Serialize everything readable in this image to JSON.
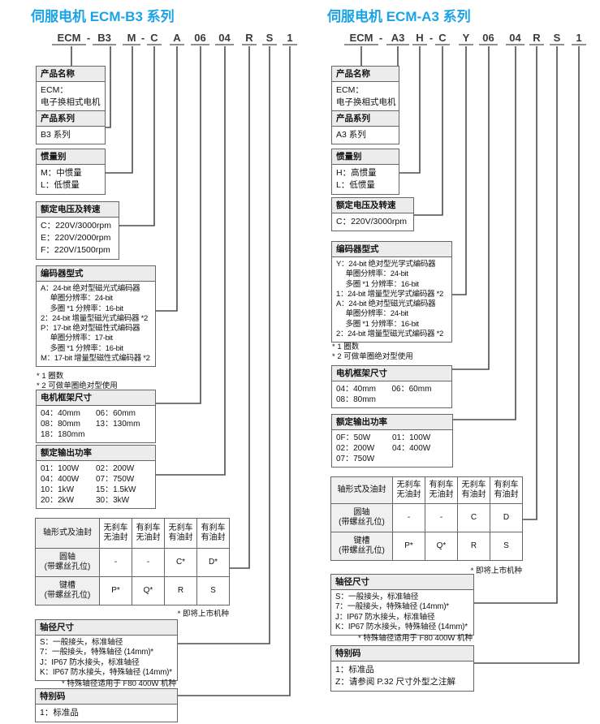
{
  "page": {
    "title_color": "#1BA3E8",
    "accent_line_color": "#4d4d4d"
  },
  "left": {
    "title": "伺服电机 ECM-B3 系列",
    "model": [
      "ECM",
      "-",
      "B3",
      "M",
      "-",
      "C",
      "A",
      "06",
      "04",
      "R",
      "S",
      "1"
    ],
    "boxes": {
      "product_name": {
        "header": "产品名称",
        "lines": [
          "ECM：",
          "电子换相式电机"
        ]
      },
      "series": {
        "header": "产品系列",
        "lines": [
          "B3 系列"
        ]
      },
      "inertia": {
        "header": "惯量别",
        "lines": [
          "M：中惯量",
          "L：低惯量"
        ]
      },
      "voltage": {
        "header": "额定电压及转速",
        "lines": [
          "C：220V/3000rpm",
          "E：220V/2000rpm",
          "F：220V/1500rpm"
        ]
      },
      "encoder": {
        "header": "编码器型式",
        "lines": [
          "A：24-bit 绝对型磁光式编码器",
          "　 单圈分辨率：24-bit",
          "　 多圈 *1 分辨率：16-bit",
          "2：24-bit 增量型磁光式编码器 *2",
          "P：17-bit 绝对型磁性式编码器",
          "　 单圈分辨率：17-bit",
          "　 多圈 *1 分辨率：16-bit",
          "M：17-bit 增量型磁性式编码器 *2"
        ],
        "notes": [
          "* 1 圈数",
          "* 2 可做单圈绝对型使用"
        ]
      },
      "frame": {
        "header": "电机框架尺寸",
        "pairs": [
          [
            "04：40mm",
            "06：60mm"
          ],
          [
            "08：80mm",
            "13：130mm"
          ],
          [
            "18：180mm",
            ""
          ]
        ]
      },
      "power": {
        "header": "额定输出功率",
        "pairs": [
          [
            "01：100W",
            "02：200W"
          ],
          [
            "04：400W",
            "07：750W"
          ],
          [
            "10：1kW",
            "15：1.5kW"
          ],
          [
            "20：2kW",
            "30：3kW"
          ]
        ]
      },
      "shaft_table": {
        "header": [
          "轴形式及油封",
          "无刹车|无油封",
          "有刹车|无油封",
          "无刹车|有油封",
          "有刹车|有油封"
        ],
        "rows": [
          [
            "圆轴|(带螺丝孔位)",
            "-",
            "-",
            "C*",
            "D*"
          ],
          [
            "键槽|(带螺丝孔位)",
            "P*",
            "Q*",
            "R",
            "S"
          ]
        ],
        "note": "* 即将上市机种"
      },
      "shaft_dia": {
        "header": "轴径尺寸",
        "lines": [
          "S：一般接头，标准轴径",
          "7：一般接头，特殊轴径 (14mm)*",
          "J：IP67 防水接头，标准轴径",
          "K：IP67 防水接头，特殊轴径 (14mm)*"
        ],
        "note": "* 特殊轴径适用于 F80 400W 机种"
      },
      "special": {
        "header": "特别码",
        "lines": [
          "1：标准品"
        ]
      }
    }
  },
  "right": {
    "title": "伺服电机 ECM-A3 系列",
    "model": [
      "ECM",
      "-",
      "A3",
      "H",
      "-",
      "C",
      "Y",
      "06",
      "04",
      "R",
      "S",
      "1"
    ],
    "boxes": {
      "product_name": {
        "header": "产品名称",
        "lines": [
          "ECM：",
          "电子换相式电机"
        ]
      },
      "series": {
        "header": "产品系列",
        "lines": [
          "A3 系列"
        ]
      },
      "inertia": {
        "header": "惯量别",
        "lines": [
          "H：高惯量",
          "L：低惯量"
        ]
      },
      "voltage": {
        "header": "额定电压及转速",
        "lines": [
          "C：220V/3000rpm"
        ]
      },
      "encoder": {
        "header": "编码器型式",
        "lines": [
          "Y：24-bit 绝对型光学式编码器",
          "　 单圈分辨率：24-bit",
          "　 多圈 *1 分辨率：16-bit",
          "1：24-bit 增量型光学式编码器 *2",
          "A：24-bit 绝对型磁光式编码器",
          "　 单圈分辨率：24-bit",
          "　 多圈 *1 分辨率：16-bit",
          "2：24-bit 增量型磁光式编码器 *2"
        ],
        "notes": [
          "* 1 圈数",
          "* 2 可做单圈绝对型使用"
        ]
      },
      "frame": {
        "header": "电机框架尺寸",
        "pairs": [
          [
            "04：40mm",
            "06：60mm"
          ],
          [
            "08：80mm",
            ""
          ]
        ]
      },
      "power": {
        "header": "额定输出功率",
        "pairs": [
          [
            "0F：50W",
            "01：100W"
          ],
          [
            "02：200W",
            "04：400W"
          ],
          [
            "07：750W",
            ""
          ]
        ]
      },
      "shaft_table": {
        "header": [
          "轴形式及油封",
          "无刹车|无油封",
          "有刹车|无油封",
          "无刹车|有油封",
          "有刹车|有油封"
        ],
        "rows": [
          [
            "圆轴|(带螺丝孔位)",
            "-",
            "-",
            "C",
            "D"
          ],
          [
            "键槽|(带螺丝孔位)",
            "P*",
            "Q*",
            "R",
            "S"
          ]
        ],
        "note": "* 即将上市机种"
      },
      "shaft_dia": {
        "header": "轴径尺寸",
        "lines": [
          "S：一般接头，标准轴径",
          "7：一般接头，特殊轴径 (14mm)*",
          "J：IP67 防水接头，标准轴径",
          "K：IP67 防水接头，特殊轴径 (14mm)*"
        ],
        "note": "* 特殊轴径适用于 F80 400W 机种"
      },
      "special": {
        "header": "特别码",
        "lines": [
          "1：标准品",
          "Z：请参阅 P.32 尺寸外型之注解"
        ]
      }
    }
  }
}
